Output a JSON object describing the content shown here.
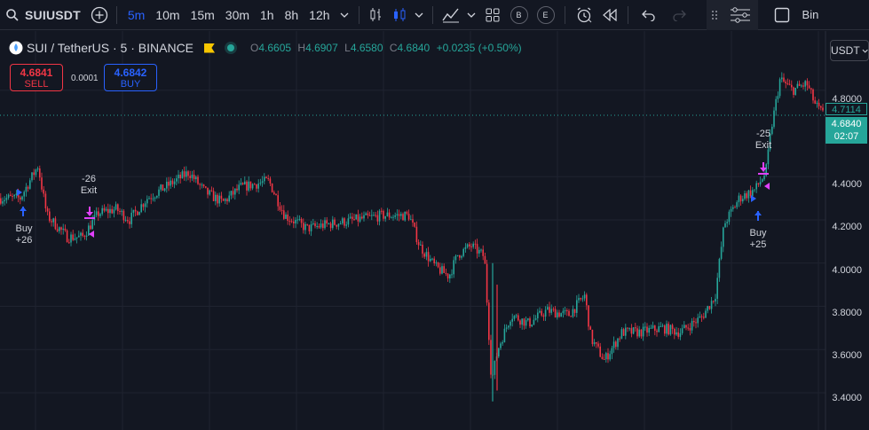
{
  "toolbar": {
    "symbol": "SUIUSDT",
    "timeframes": [
      "5m",
      "10m",
      "15m",
      "30m",
      "1h",
      "8h",
      "12h"
    ],
    "active_timeframe": "5m",
    "badge_b": "B",
    "badge_e": "E",
    "right_text": "Bin"
  },
  "legend": {
    "title": "SUI / TetherUS · 5 · BINANCE",
    "o_label": "O",
    "o": "4.6605",
    "h_label": "H",
    "h": "4.6907",
    "l_label": "L",
    "l": "4.6580",
    "c_label": "C",
    "c": "4.6840",
    "change": "+0.0235 (+0.50%)"
  },
  "trade": {
    "sell_price": "4.6841",
    "sell_label": "SELL",
    "spread": "0.0001",
    "buy_price": "4.6842",
    "buy_label": "BUY"
  },
  "currency_button": "USDT",
  "price_axis": {
    "labels": [
      "4.8000",
      "4.4000",
      "4.2000",
      "4.0000",
      "3.8000",
      "3.6000",
      "3.4000"
    ],
    "tag_high": "4.7114",
    "tag_last": "4.6840",
    "tag_countdown": "02:07"
  },
  "signals": [
    {
      "id": "buy1",
      "line1": "Buy",
      "line2": "+26"
    },
    {
      "id": "exit1",
      "line1": "-26",
      "line2": "Exit"
    },
    {
      "id": "exit2",
      "line1": "-25",
      "line2": "Exit"
    },
    {
      "id": "buy2",
      "line1": "Buy",
      "line2": "+25"
    }
  ],
  "chart_data": {
    "type": "candlestick",
    "ylim": [
      3.33,
      4.93
    ],
    "grid": true,
    "key_points": [
      {
        "x": 0,
        "y": 4.3
      },
      {
        "x": 22,
        "y": 4.3
      },
      {
        "x": 42,
        "y": 4.45
      },
      {
        "x": 52,
        "y": 4.22
      },
      {
        "x": 75,
        "y": 4.12
      },
      {
        "x": 92,
        "y": 4.12
      },
      {
        "x": 110,
        "y": 4.23
      },
      {
        "x": 130,
        "y": 4.25
      },
      {
        "x": 145,
        "y": 4.2
      },
      {
        "x": 165,
        "y": 4.3
      },
      {
        "x": 185,
        "y": 4.35
      },
      {
        "x": 212,
        "y": 4.42
      },
      {
        "x": 230,
        "y": 4.33
      },
      {
        "x": 250,
        "y": 4.28
      },
      {
        "x": 270,
        "y": 4.35
      },
      {
        "x": 302,
        "y": 4.38
      },
      {
        "x": 320,
        "y": 4.22
      },
      {
        "x": 345,
        "y": 4.16
      },
      {
        "x": 370,
        "y": 4.18
      },
      {
        "x": 400,
        "y": 4.2
      },
      {
        "x": 430,
        "y": 4.22
      },
      {
        "x": 460,
        "y": 4.22
      },
      {
        "x": 472,
        "y": 4.08
      },
      {
        "x": 490,
        "y": 3.98
      },
      {
        "x": 505,
        "y": 3.94
      },
      {
        "x": 515,
        "y": 4.04
      },
      {
        "x": 530,
        "y": 4.08
      },
      {
        "x": 545,
        "y": 4.03
      },
      {
        "x": 553,
        "y": 3.45
      },
      {
        "x": 560,
        "y": 3.6
      },
      {
        "x": 575,
        "y": 3.76
      },
      {
        "x": 595,
        "y": 3.72
      },
      {
        "x": 615,
        "y": 3.78
      },
      {
        "x": 640,
        "y": 3.76
      },
      {
        "x": 658,
        "y": 3.85
      },
      {
        "x": 665,
        "y": 3.65
      },
      {
        "x": 680,
        "y": 3.55
      },
      {
        "x": 700,
        "y": 3.68
      },
      {
        "x": 720,
        "y": 3.68
      },
      {
        "x": 745,
        "y": 3.7
      },
      {
        "x": 765,
        "y": 3.68
      },
      {
        "x": 790,
        "y": 3.75
      },
      {
        "x": 805,
        "y": 3.85
      },
      {
        "x": 815,
        "y": 4.18
      },
      {
        "x": 832,
        "y": 4.3
      },
      {
        "x": 850,
        "y": 4.34
      },
      {
        "x": 862,
        "y": 4.42
      },
      {
        "x": 868,
        "y": 4.62
      },
      {
        "x": 878,
        "y": 4.85
      },
      {
        "x": 892,
        "y": 4.8
      },
      {
        "x": 908,
        "y": 4.83
      },
      {
        "x": 918,
        "y": 4.73
      },
      {
        "x": 928,
        "y": 4.68
      }
    ]
  },
  "colors": {
    "up": "#26a69a",
    "down": "#f23645",
    "signal": "#e040fb",
    "buy_arrow": "#2962ff",
    "accent": "#2962ff"
  }
}
